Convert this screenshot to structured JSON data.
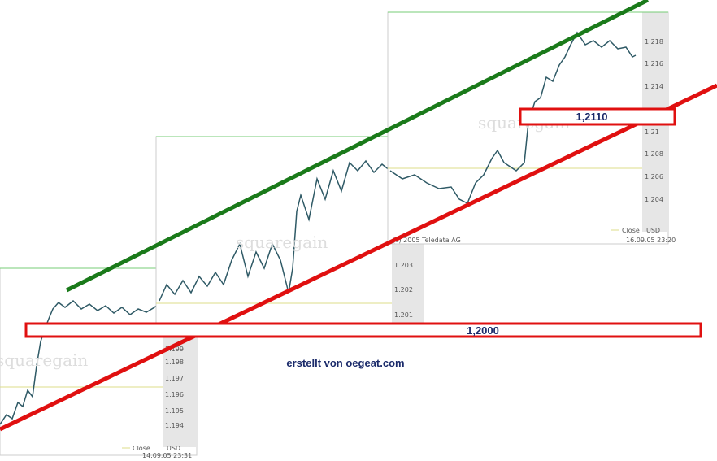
{
  "annotations": {
    "upper_level": "1,2110",
    "lower_level": "1,2000",
    "credit": "erstellt von oegeat.com"
  },
  "panels": [
    {
      "axis_labels": [
        "1.199",
        "1.198",
        "1.197",
        "1.196",
        "1.195",
        "1.194"
      ],
      "legend": "Close",
      "currency": "USD",
      "timestamp": "14.09.05 23:31",
      "watermark": "squaregain"
    },
    {
      "axis_labels": [
        "1.203",
        "1.202",
        "1.201"
      ],
      "watermark": "squaregain"
    },
    {
      "axis_labels": [
        "1.218",
        "1.216",
        "1.214",
        "1.21",
        "1.208",
        "1.206",
        "1.204"
      ],
      "legend": "Close",
      "currency": "USD",
      "timestamp": "16.09.05 23:20",
      "watermark": "squaregain",
      "source": "(c) 2005 Teledata AG"
    }
  ]
}
